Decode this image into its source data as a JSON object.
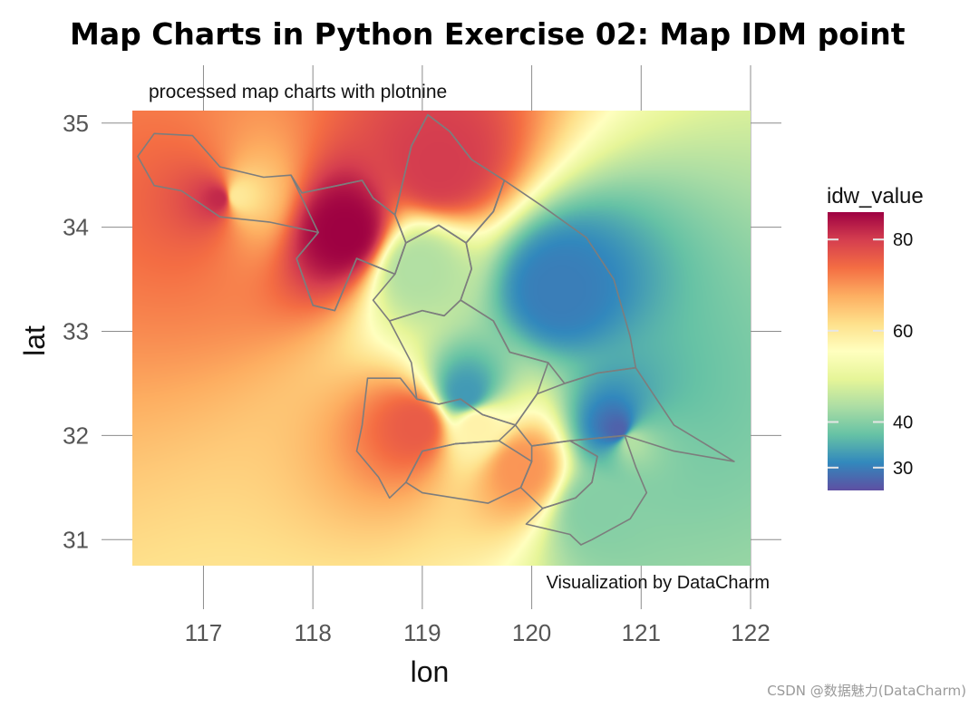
{
  "chart_data": {
    "type": "heatmap",
    "title": "Map Charts in Python Exercise 02: Map IDM point",
    "subtitle": "processed map charts with plotnine",
    "caption": "Visualization by DataCharm",
    "xlabel": "lon",
    "ylabel": "lat",
    "xlim": [
      116.35,
      122.0
    ],
    "ylim": [
      30.75,
      35.12
    ],
    "x_ticks": [
      117,
      118,
      119,
      120,
      121,
      122
    ],
    "y_ticks": [
      31,
      32,
      33,
      34,
      35
    ],
    "grid": true,
    "legend": {
      "title": "idw_value",
      "position": "right",
      "ticks": [
        30,
        40,
        60,
        80
      ],
      "range": [
        25,
        86
      ],
      "palette": "Spectral (reversed)"
    },
    "points": [
      {
        "lon": 117.15,
        "lat": 34.28,
        "value": 82
      },
      {
        "lon": 118.3,
        "lat": 33.95,
        "value": 86
      },
      {
        "lon": 119.15,
        "lat": 34.6,
        "value": 80
      },
      {
        "lon": 120.25,
        "lat": 33.4,
        "value": 30
      },
      {
        "lon": 120.8,
        "lat": 32.05,
        "value": 27
      },
      {
        "lon": 119.4,
        "lat": 32.4,
        "value": 33
      },
      {
        "lon": 118.95,
        "lat": 32.1,
        "value": 76
      },
      {
        "lon": 119.9,
        "lat": 31.7,
        "value": 70
      },
      {
        "lon": 117.3,
        "lat": 34.3,
        "value": 60
      },
      {
        "lon": 118.95,
        "lat": 33.6,
        "value": 44
      },
      {
        "lon": 119.5,
        "lat": 32.1,
        "value": 58
      },
      {
        "lon": 120.6,
        "lat": 31.3,
        "value": 40
      },
      {
        "lon": 120.9,
        "lat": 31.95,
        "value": 44
      }
    ],
    "boundaries": [
      [
        [
          116.4,
          34.68
        ],
        [
          116.55,
          34.9
        ],
        [
          116.9,
          34.88
        ],
        [
          117.15,
          34.58
        ],
        [
          117.55,
          34.48
        ],
        [
          117.8,
          34.5
        ],
        [
          117.9,
          34.33
        ],
        [
          118.45,
          34.45
        ],
        [
          118.55,
          34.28
        ],
        [
          118.75,
          34.12
        ],
        [
          118.9,
          34.78
        ],
        [
          119.05,
          35.08
        ],
        [
          119.25,
          34.92
        ],
        [
          119.45,
          34.65
        ],
        [
          119.75,
          34.45
        ],
        [
          119.65,
          34.15
        ],
        [
          119.4,
          33.85
        ],
        [
          119.15,
          34.02
        ],
        [
          118.85,
          33.85
        ],
        [
          118.75,
          33.55
        ],
        [
          118.4,
          33.7
        ],
        [
          118.2,
          33.2
        ],
        [
          118.0,
          33.25
        ],
        [
          117.85,
          33.7
        ],
        [
          118.05,
          33.95
        ],
        [
          117.6,
          34.05
        ],
        [
          117.15,
          34.1
        ],
        [
          116.8,
          34.35
        ],
        [
          116.55,
          34.4
        ],
        [
          116.4,
          34.68
        ]
      ],
      [
        [
          118.75,
          34.12
        ],
        [
          118.85,
          33.85
        ],
        [
          119.15,
          34.02
        ],
        [
          119.4,
          33.85
        ],
        [
          119.65,
          34.15
        ],
        [
          119.75,
          34.45
        ],
        [
          119.45,
          34.65
        ],
        [
          119.25,
          34.92
        ],
        [
          119.05,
          35.08
        ],
        [
          118.9,
          34.78
        ],
        [
          118.75,
          34.12
        ]
      ],
      [
        [
          117.8,
          34.5
        ],
        [
          117.9,
          34.33
        ],
        [
          118.45,
          34.45
        ],
        [
          118.55,
          34.28
        ],
        [
          118.75,
          34.12
        ],
        [
          118.85,
          33.85
        ],
        [
          118.75,
          33.55
        ],
        [
          118.4,
          33.7
        ],
        [
          118.2,
          33.2
        ],
        [
          118.0,
          33.25
        ],
        [
          117.85,
          33.7
        ],
        [
          118.05,
          33.95
        ],
        [
          117.8,
          34.5
        ]
      ],
      [
        [
          118.75,
          33.55
        ],
        [
          118.85,
          33.85
        ],
        [
          119.15,
          34.02
        ],
        [
          119.4,
          33.85
        ],
        [
          119.45,
          33.6
        ],
        [
          119.35,
          33.3
        ],
        [
          119.2,
          33.15
        ],
        [
          119.0,
          33.2
        ],
        [
          118.7,
          33.1
        ],
        [
          118.55,
          33.3
        ],
        [
          118.75,
          33.55
        ]
      ],
      [
        [
          119.4,
          33.85
        ],
        [
          119.65,
          34.15
        ],
        [
          119.75,
          34.45
        ],
        [
          120.1,
          34.2
        ],
        [
          120.5,
          33.9
        ],
        [
          120.75,
          33.5
        ],
        [
          120.9,
          32.95
        ],
        [
          120.95,
          32.65
        ],
        [
          120.6,
          32.6
        ],
        [
          120.3,
          32.5
        ],
        [
          120.15,
          32.7
        ],
        [
          119.8,
          32.8
        ],
        [
          119.65,
          33.1
        ],
        [
          119.35,
          33.3
        ],
        [
          119.45,
          33.6
        ],
        [
          119.4,
          33.85
        ]
      ],
      [
        [
          118.7,
          33.1
        ],
        [
          119.0,
          33.2
        ],
        [
          119.2,
          33.15
        ],
        [
          119.35,
          33.3
        ],
        [
          119.65,
          33.1
        ],
        [
          119.8,
          32.8
        ],
        [
          120.15,
          32.7
        ],
        [
          120.05,
          32.4
        ],
        [
          119.85,
          32.1
        ],
        [
          119.55,
          32.2
        ],
        [
          119.35,
          32.35
        ],
        [
          119.15,
          32.3
        ],
        [
          118.95,
          32.35
        ],
        [
          118.9,
          32.7
        ],
        [
          118.7,
          33.1
        ]
      ],
      [
        [
          118.5,
          32.55
        ],
        [
          118.8,
          32.55
        ],
        [
          118.95,
          32.35
        ],
        [
          119.15,
          32.3
        ],
        [
          119.35,
          32.35
        ],
        [
          119.55,
          32.2
        ],
        [
          119.85,
          32.1
        ],
        [
          119.7,
          31.95
        ],
        [
          119.3,
          31.92
        ],
        [
          119.0,
          31.85
        ],
        [
          118.85,
          31.55
        ],
        [
          118.7,
          31.4
        ],
        [
          118.6,
          31.6
        ],
        [
          118.4,
          31.85
        ],
        [
          118.45,
          32.1
        ],
        [
          118.5,
          32.55
        ]
      ],
      [
        [
          119.0,
          31.85
        ],
        [
          119.3,
          31.92
        ],
        [
          119.7,
          31.95
        ],
        [
          119.85,
          31.85
        ],
        [
          120.0,
          31.75
        ],
        [
          119.9,
          31.5
        ],
        [
          119.6,
          31.35
        ],
        [
          119.3,
          31.4
        ],
        [
          119.0,
          31.45
        ],
        [
          118.85,
          31.55
        ],
        [
          119.0,
          31.85
        ]
      ],
      [
        [
          119.85,
          32.1
        ],
        [
          120.05,
          32.4
        ],
        [
          120.3,
          32.5
        ],
        [
          120.6,
          32.6
        ],
        [
          120.95,
          32.65
        ],
        [
          121.3,
          32.1
        ],
        [
          121.85,
          31.75
        ],
        [
          121.3,
          31.85
        ],
        [
          120.85,
          32.0
        ],
        [
          120.35,
          31.95
        ],
        [
          120.0,
          31.9
        ],
        [
          119.85,
          32.1
        ]
      ],
      [
        [
          120.0,
          31.9
        ],
        [
          120.35,
          31.95
        ],
        [
          120.6,
          31.8
        ],
        [
          120.55,
          31.55
        ],
        [
          120.4,
          31.4
        ],
        [
          120.1,
          31.3
        ],
        [
          119.9,
          31.5
        ],
        [
          120.0,
          31.75
        ],
        [
          120.0,
          31.9
        ]
      ],
      [
        [
          120.35,
          31.95
        ],
        [
          120.85,
          32.0
        ],
        [
          120.95,
          31.7
        ],
        [
          121.05,
          31.45
        ],
        [
          120.9,
          31.2
        ],
        [
          120.55,
          31.0
        ],
        [
          120.45,
          30.95
        ],
        [
          120.35,
          31.05
        ],
        [
          119.95,
          31.15
        ],
        [
          120.1,
          31.3
        ],
        [
          120.4,
          31.4
        ],
        [
          120.55,
          31.55
        ],
        [
          120.6,
          31.8
        ],
        [
          120.35,
          31.95
        ]
      ]
    ]
  },
  "watermark": "CSDN @数据魅力(DataCharm)"
}
